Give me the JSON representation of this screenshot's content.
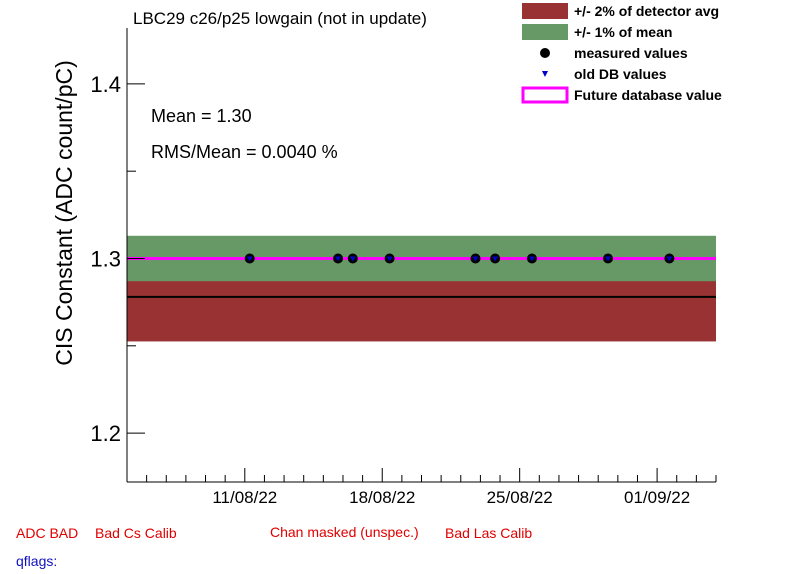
{
  "chart_data": {
    "type": "scatter",
    "title": "LBC29 c26/p25 lowgain (not in update)",
    "ylabel": "CIS Constant (ADC count/pC)",
    "xlabel": "",
    "ylim": [
      1.172,
      1.432
    ],
    "xlim": [
      "2022-08-05",
      "2022-09-04"
    ],
    "yticks_major": [
      1.2,
      1.3,
      1.4
    ],
    "ytick_labels": [
      "1.2",
      "1.3",
      "1.4"
    ],
    "xticks": [
      {
        "date": "2022-08-11",
        "label": "11/08/22"
      },
      {
        "date": "2022-08-18",
        "label": "18/08/22"
      },
      {
        "date": "2022-08-25",
        "label": "25/08/22"
      },
      {
        "date": "2022-09-01",
        "label": "01/09/22"
      }
    ],
    "grid": false,
    "legend_position": "top-right",
    "detector_avg": 1.278,
    "detector_band": [
      1.2525,
      1.3035
    ],
    "mean_band": [
      1.287,
      1.313
    ],
    "future_db_value": 1.3,
    "measured": [
      {
        "date": "2022-08-11T06:00",
        "value": 1.3
      },
      {
        "date": "2022-08-15T18:00",
        "value": 1.3
      },
      {
        "date": "2022-08-16T12:00",
        "value": 1.3
      },
      {
        "date": "2022-08-18T09:00",
        "value": 1.3
      },
      {
        "date": "2022-08-22T18:00",
        "value": 1.3
      },
      {
        "date": "2022-08-23T18:00",
        "value": 1.3
      },
      {
        "date": "2022-08-25T15:00",
        "value": 1.3
      },
      {
        "date": "2022-08-29T12:00",
        "value": 1.3
      },
      {
        "date": "2022-09-01T15:00",
        "value": 1.3
      }
    ],
    "old_db": [
      {
        "date": "2022-08-11T06:00",
        "value": 1.3
      },
      {
        "date": "2022-08-15T18:00",
        "value": 1.3
      },
      {
        "date": "2022-08-16T12:00",
        "value": 1.3
      },
      {
        "date": "2022-08-18T09:00",
        "value": 1.3
      },
      {
        "date": "2022-08-22T18:00",
        "value": 1.3
      },
      {
        "date": "2022-08-23T18:00",
        "value": 1.3
      },
      {
        "date": "2022-08-25T15:00",
        "value": 1.3
      },
      {
        "date": "2022-08-29T12:00",
        "value": 1.3
      },
      {
        "date": "2022-09-01T15:00",
        "value": 1.3
      }
    ],
    "stats": {
      "mean_text": "Mean = 1.30",
      "rms_text": "RMS/Mean = 0.0040 %"
    },
    "legend": [
      {
        "label": "+/- 2% of detector avg",
        "kind": "box",
        "color": "#993333"
      },
      {
        "label": "+/- 1% of mean",
        "kind": "box",
        "color": "#669966"
      },
      {
        "label": "measured values",
        "kind": "dot",
        "color": "#000000"
      },
      {
        "label": "old DB values",
        "kind": "triangle",
        "color": "#0000cc"
      },
      {
        "label": "Future database value",
        "kind": "line",
        "color": "#ff00ff"
      }
    ],
    "colors": {
      "detector_band": "#993333",
      "mean_band": "#669966",
      "avg_line": "#000000",
      "future_line": "#ff00ff",
      "measured": "#000000",
      "old_db": "#0000cc"
    }
  },
  "flags": {
    "adc_bad": "ADC BAD",
    "bad_cs": "Bad Cs Calib",
    "chan_masked": "Chan masked (unspec.)",
    "bad_las": "Bad Las Calib",
    "qflags": "qflags:"
  }
}
